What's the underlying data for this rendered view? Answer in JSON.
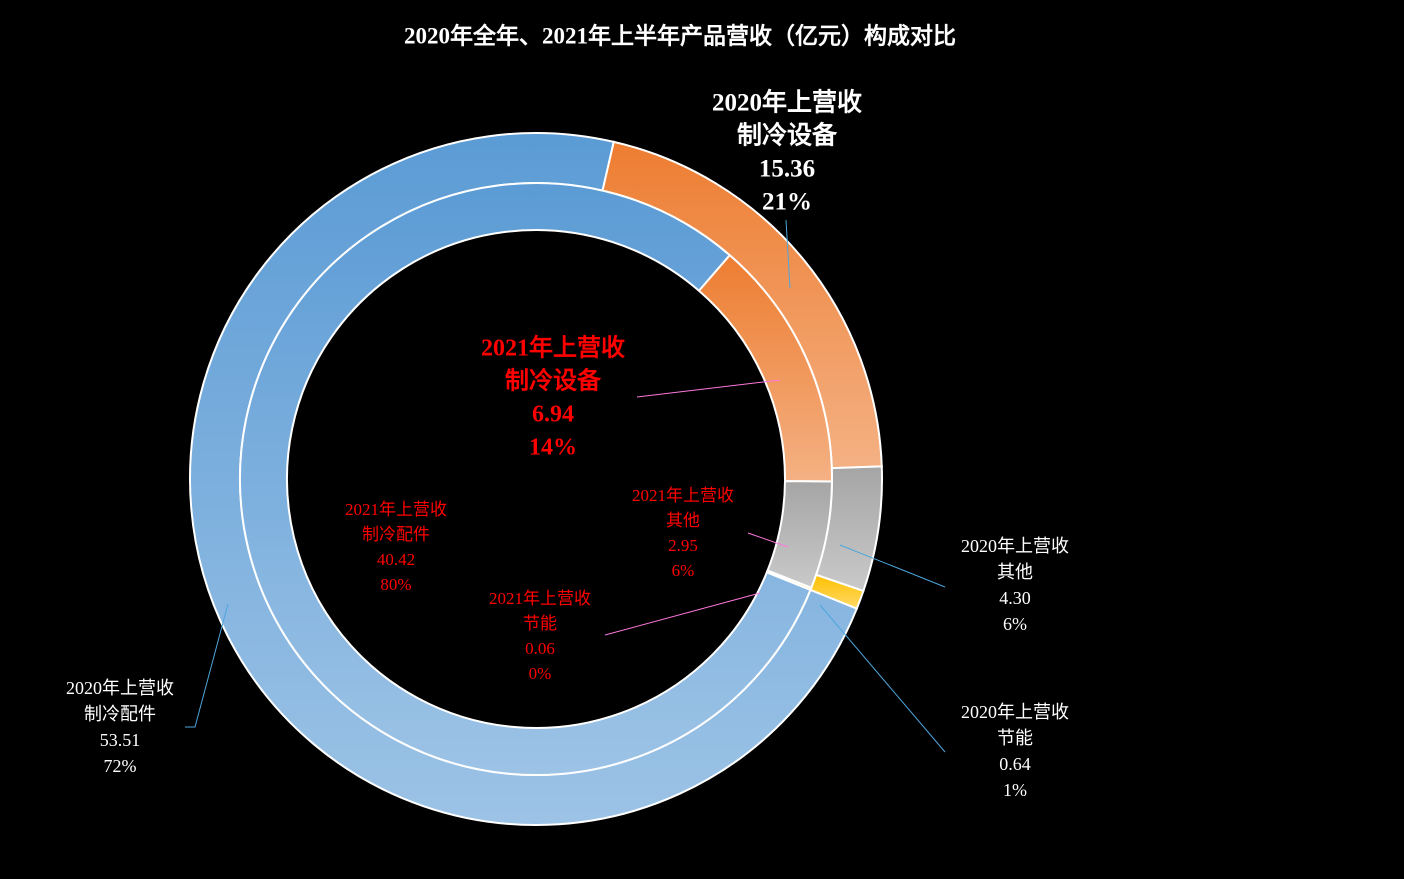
{
  "chart_data": {
    "type": "donut",
    "title": "2020年全年、2021年上半年产品营收（亿元）构成对比",
    "categories": [
      "制冷配件",
      "制冷设备",
      "其他",
      "节能"
    ],
    "colors": [
      "#5b9bd5",
      "#ed7d31",
      "#a5a5a5",
      "#ffc000"
    ],
    "series": [
      {
        "name": "2020年上营收",
        "values": [
          53.51,
          15.36,
          4.3,
          0.64
        ],
        "value_labels": [
          "53.51",
          "15.36",
          "4.30",
          "0.64"
        ],
        "percent_labels": [
          "72%",
          "21%",
          "6%",
          "1%"
        ],
        "label_color": "#ffffff",
        "leader_color": "#4ea6dc"
      },
      {
        "name": "2021年上营收",
        "values": [
          40.42,
          6.94,
          2.95,
          0.06
        ],
        "value_labels": [
          "40.42",
          "6.94",
          "2.95",
          "0.06"
        ],
        "percent_labels": [
          "80%",
          "14%",
          "6%",
          "0%"
        ],
        "label_color": "#ff0000",
        "leader_color": "#ff77dd"
      }
    ]
  }
}
